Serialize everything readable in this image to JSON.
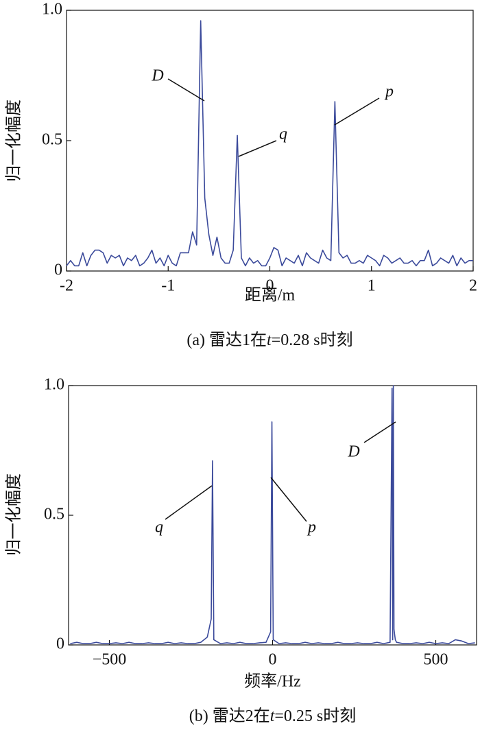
{
  "chart_data": [
    {
      "type": "line",
      "ylabel": "归一化幅度",
      "xlabel": "距离/m",
      "caption": [
        "(a) 雷达1在",
        "t",
        "=0.28 s时刻"
      ],
      "color": "#3b4a9b",
      "xlim": [
        -2,
        2
      ],
      "ylim": [
        0,
        1
      ],
      "xticks": [
        -2,
        -1,
        0,
        1,
        2
      ],
      "yticks": [
        0,
        0.5,
        {
          "value": 1,
          "label": "1.0"
        }
      ],
      "annotations": [
        {
          "text": "D"
        },
        {
          "text": "q"
        },
        {
          "text": "p"
        }
      ],
      "x": [
        -2,
        -1.96,
        -1.92,
        -1.88,
        -1.84,
        -1.8,
        -1.76,
        -1.72,
        -1.68,
        -1.64,
        -1.6,
        -1.56,
        -1.52,
        -1.48,
        -1.44,
        -1.4,
        -1.36,
        -1.32,
        -1.28,
        -1.24,
        -1.2,
        -1.16,
        -1.12,
        -1.08,
        -1.04,
        -1,
        -0.96,
        -0.92,
        -0.88,
        -0.84,
        -0.8,
        -0.76,
        -0.72,
        -0.68,
        -0.64,
        -0.6,
        -0.56,
        -0.52,
        -0.48,
        -0.44,
        -0.4,
        -0.36,
        -0.32,
        -0.28,
        -0.24,
        -0.2,
        -0.16,
        -0.12,
        -0.08,
        -0.04,
        0,
        0.04,
        0.08,
        0.12,
        0.16,
        0.2,
        0.24,
        0.28,
        0.32,
        0.36,
        0.4,
        0.44,
        0.48,
        0.52,
        0.56,
        0.6,
        0.64,
        0.68,
        0.72,
        0.76,
        0.8,
        0.84,
        0.88,
        0.92,
        0.96,
        1,
        1.04,
        1.08,
        1.12,
        1.16,
        1.2,
        1.24,
        1.28,
        1.32,
        1.36,
        1.4,
        1.44,
        1.48,
        1.52,
        1.56,
        1.6,
        1.64,
        1.68,
        1.72,
        1.76,
        1.8,
        1.84,
        1.88,
        1.92,
        1.96,
        2
      ],
      "values": [
        0.02,
        0.04,
        0.02,
        0.02,
        0.07,
        0.02,
        0.06,
        0.08,
        0.08,
        0.07,
        0.03,
        0.06,
        0.05,
        0.06,
        0.02,
        0.05,
        0.04,
        0.06,
        0.02,
        0.03,
        0.05,
        0.08,
        0.03,
        0.05,
        0.02,
        0.06,
        0.03,
        0.02,
        0.07,
        0.07,
        0.07,
        0.15,
        0.1,
        0.96,
        0.28,
        0.14,
        0.06,
        0.13,
        0.05,
        0.03,
        0.03,
        0.08,
        0.52,
        0.05,
        0.02,
        0.05,
        0.03,
        0.04,
        0.02,
        0.02,
        0.05,
        0.09,
        0.08,
        0.02,
        0.05,
        0.04,
        0.03,
        0.06,
        0.02,
        0.07,
        0.05,
        0.04,
        0.03,
        0.08,
        0.05,
        0.04,
        0.65,
        0.07,
        0.05,
        0.06,
        0.03,
        0.03,
        0.04,
        0.03,
        0.06,
        0.05,
        0.04,
        0.02,
        0.06,
        0.05,
        0.03,
        0.04,
        0.05,
        0.03,
        0.03,
        0.04,
        0.02,
        0.04,
        0.04,
        0.08,
        0.02,
        0.03,
        0.05,
        0.04,
        0.03,
        0.06,
        0.02,
        0.05,
        0.03,
        0.04,
        0.04
      ]
    },
    {
      "type": "line",
      "ylabel": "归一化幅度",
      "xlabel": "频率/Hz",
      "caption": [
        "(b) 雷达2在",
        "t",
        "=0.25 s时刻"
      ],
      "color": "#3b4a9b",
      "xlim": [
        -625,
        625
      ],
      "ylim": [
        0,
        1
      ],
      "xticks": [
        {
          "value": -500,
          "label": "−500"
        },
        0,
        500
      ],
      "yticks": [
        0,
        0.5,
        {
          "value": 1,
          "label": "1.0"
        }
      ],
      "annotations": [
        {
          "text": "q"
        },
        {
          "text": "p"
        },
        {
          "text": "D"
        }
      ],
      "x": [
        -620,
        -600,
        -580,
        -560,
        -540,
        -520,
        -500,
        -480,
        -460,
        -440,
        -420,
        -400,
        -380,
        -360,
        -340,
        -320,
        -300,
        -280,
        -260,
        -240,
        -220,
        -200,
        -188,
        -184,
        -180,
        -160,
        -140,
        -120,
        -100,
        -80,
        -60,
        -40,
        -20,
        -6,
        -2,
        2,
        20,
        40,
        60,
        80,
        100,
        120,
        140,
        160,
        180,
        200,
        220,
        240,
        260,
        280,
        300,
        320,
        340,
        360,
        366,
        368,
        370,
        372,
        376,
        380,
        400,
        420,
        440,
        460,
        480,
        500,
        520,
        540,
        560,
        580,
        600,
        620
      ],
      "values": [
        0.005,
        0.01,
        0.005,
        0.005,
        0.01,
        0.005,
        0.005,
        0.008,
        0.005,
        0.01,
        0.005,
        0.005,
        0.008,
        0.005,
        0.005,
        0.01,
        0.005,
        0.008,
        0.005,
        0.005,
        0.01,
        0.03,
        0.1,
        0.71,
        0.02,
        0.005,
        0.008,
        0.005,
        0.01,
        0.005,
        0.005,
        0.008,
        0.01,
        0.05,
        0.86,
        0.02,
        0.005,
        0.008,
        0.005,
        0.005,
        0.01,
        0.005,
        0.008,
        0.005,
        0.005,
        0.01,
        0.005,
        0.005,
        0.008,
        0.005,
        0.005,
        0.01,
        0.005,
        0.01,
        0.99,
        0.02,
        1.0,
        0.06,
        0.02,
        0.01,
        0.005,
        0.005,
        0.008,
        0.005,
        0.01,
        0.005,
        0.008,
        0.005,
        0.02,
        0.015,
        0.005,
        0.008
      ]
    }
  ]
}
